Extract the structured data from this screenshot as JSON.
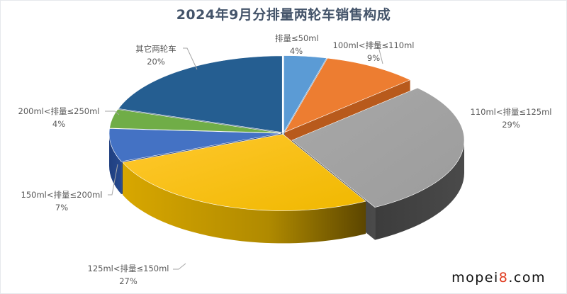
{
  "title": "2024年9月分排量两轮车销售构成",
  "watermark": {
    "prefix": "mopei",
    "accent": "8",
    "suffix": ".com"
  },
  "labels": [
    {
      "name": "排量≤50ml",
      "pct": "4%"
    },
    {
      "name": "100ml<排量≤110ml",
      "pct": "9%"
    },
    {
      "name": "110ml<排量≤125ml",
      "pct": "29%"
    },
    {
      "name": "125ml<排量≤150ml",
      "pct": "27%"
    },
    {
      "name": "150ml<排量≤200ml",
      "pct": "7%"
    },
    {
      "name": "200ml<排量≤250ml",
      "pct": "4%"
    },
    {
      "name": "其它两轮车",
      "pct": "20%"
    }
  ],
  "chart_data": {
    "type": "pie",
    "style": "3d-exploded",
    "title": "2024年9月分排量两轮车销售构成",
    "categories": [
      "排量≤50ml",
      "100ml<排量≤110ml",
      "110ml<排量≤125ml",
      "125ml<排量≤150ml",
      "150ml<排量≤200ml",
      "200ml<排量≤250ml",
      "其它两轮车"
    ],
    "values": [
      4,
      9,
      29,
      27,
      7,
      4,
      20
    ],
    "unit": "%",
    "colors": [
      "#5b9bd5",
      "#ed7d31",
      "#a5a5a5",
      "#ffc000",
      "#4472c4",
      "#70ad47",
      "#255e91"
    ],
    "exploded": [
      "110ml<排量≤125ml"
    ],
    "start_angle": "12 o'clock, clockwise",
    "legend": "none (data labels with leader lines)"
  }
}
